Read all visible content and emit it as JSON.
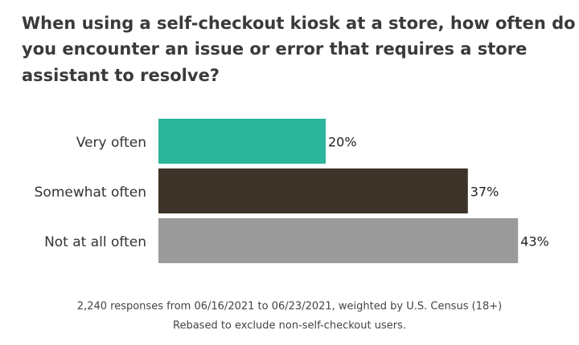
{
  "chart_data": {
    "type": "bar",
    "orientation": "horizontal",
    "title_lines": [
      "When using a self-checkout kiosk at a store, how often do",
      "you encounter an issue or error that requires a store",
      "assistant to resolve?"
    ],
    "categories": [
      "Very often",
      "Somewhat often",
      "Not at all often"
    ],
    "values": [
      20,
      37,
      43
    ],
    "value_labels": [
      "20%",
      "37%",
      "43%"
    ],
    "colors": [
      "#2bb59a",
      "#3d3328",
      "#9b9b9b"
    ],
    "footnotes": [
      "2,240 responses from 06/16/2021 to 06/23/2021, weighted by U.S. Census (18+)",
      "Rebased to exclude non-self-checkout users."
    ]
  }
}
